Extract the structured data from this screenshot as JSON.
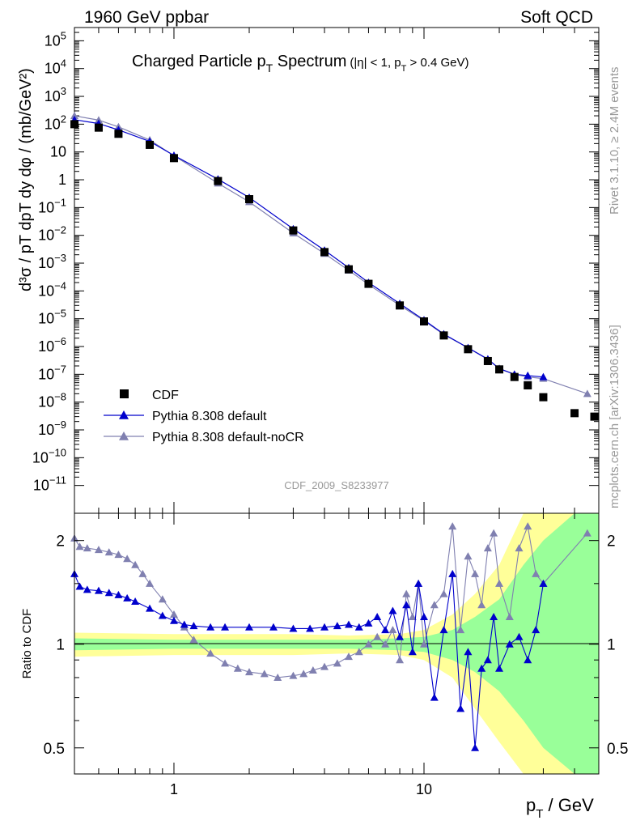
{
  "header": {
    "left": "1960 GeV ppbar",
    "right": "Soft QCD",
    "side_rivet": "Rivet 3.1.10, ≥ 2.4M events",
    "side_mcplots": "mcplots.cern.ch [arXiv:1306.3436]"
  },
  "chart_data": [
    {
      "type": "scatter",
      "title": "Charged Particle pT Spectrum (|η| < 1, pT > 0.4 GeV)",
      "title_parts": {
        "main": "Charged Particle p",
        "sub": "T",
        "rest": " Spectrum",
        "cut_a": "(|η| < 1, p",
        "cut_sub": "T",
        "cut_b": " > 0.4 GeV)"
      },
      "analysis_label": "CDF_2009_S8233977",
      "ylabel": "d³σ / pT dpT dy dφ / (mb/GeV²)",
      "xlabel": "pT / GeV",
      "x_scale": "log",
      "y_scale": "log",
      "xlim": [
        0.4,
        50
      ],
      "ylim": [
        1e-12,
        300000.0
      ],
      "legend_position": "bottom-left",
      "legend": [
        "CDF",
        "Pythia 8.308 default",
        "Pythia 8.308 default-noCR"
      ],
      "y_ticks": [
        {
          "v": 100000.0,
          "base": "10",
          "exp": "5"
        },
        {
          "v": 10000.0,
          "base": "10",
          "exp": "4"
        },
        {
          "v": 1000.0,
          "base": "10",
          "exp": "3"
        },
        {
          "v": 100.0,
          "base": "10",
          "exp": "2"
        },
        {
          "v": 10,
          "base": "10",
          "exp": ""
        },
        {
          "v": 1,
          "base": "1",
          "exp": ""
        },
        {
          "v": 0.1,
          "base": "10",
          "exp": "−1"
        },
        {
          "v": 0.01,
          "base": "10",
          "exp": "−2"
        },
        {
          "v": 0.001,
          "base": "10",
          "exp": "−3"
        },
        {
          "v": 0.0001,
          "base": "10",
          "exp": "−4"
        },
        {
          "v": 1e-05,
          "base": "10",
          "exp": "−5"
        },
        {
          "v": 1e-06,
          "base": "10",
          "exp": "−6"
        },
        {
          "v": 1e-07,
          "base": "10",
          "exp": "−7"
        },
        {
          "v": 1e-08,
          "base": "10",
          "exp": "−8"
        },
        {
          "v": 1e-09,
          "base": "10",
          "exp": "−9"
        },
        {
          "v": 1e-10,
          "base": "10",
          "exp": "−10"
        },
        {
          "v": 1e-11,
          "base": "10",
          "exp": "−11"
        }
      ],
      "series": [
        {
          "name": "CDF",
          "color": "#000000",
          "marker": "square",
          "x": [
            0.4,
            0.5,
            0.6,
            0.8,
            1.0,
            1.5,
            2.0,
            3.0,
            4.0,
            5.0,
            6.0,
            8.0,
            10.0,
            12.0,
            15.0,
            18.0,
            20.0,
            23.0,
            26.0,
            30.0,
            40.0,
            48.0
          ],
          "y": [
            100,
            75,
            45,
            18,
            6,
            0.9,
            0.2,
            0.015,
            0.0025,
            0.0006,
            0.00018,
            3e-05,
            8e-06,
            2.5e-06,
            8e-07,
            3e-07,
            1.5e-07,
            8e-08,
            4e-08,
            1.5e-08,
            4e-09,
            3e-09
          ]
        },
        {
          "name": "Pythia 8.308 default",
          "color": "#0000cc",
          "marker": "triangle",
          "x": [
            0.4,
            0.5,
            0.6,
            0.8,
            1.0,
            1.5,
            2.0,
            3.0,
            4.0,
            5.0,
            6.0,
            8.0,
            10.0,
            12.0,
            15.0,
            18.0,
            20.0,
            23.0,
            26.0,
            30.0
          ],
          "y": [
            145,
            105,
            62,
            24,
            7.5,
            1.05,
            0.23,
            0.017,
            0.0029,
            0.00068,
            0.0002,
            3.5e-05,
            9e-06,
            2.8e-06,
            9e-07,
            3.5e-07,
            1.6e-07,
            1e-07,
            9e-08,
            8e-08
          ]
        },
        {
          "name": "Pythia 8.308 default-noCR",
          "color": "#8080b0",
          "marker": "triangle",
          "x": [
            0.4,
            0.5,
            0.6,
            0.8,
            1.0,
            1.5,
            2.0,
            3.0,
            4.0,
            5.0,
            6.0,
            8.0,
            10.0,
            12.0,
            15.0,
            18.0,
            20.0,
            23.0,
            26.0,
            30.0,
            45.0
          ],
          "y": [
            200,
            140,
            80,
            27,
            7.3,
            0.75,
            0.16,
            0.012,
            0.0022,
            0.00055,
            0.00017,
            3e-05,
            8.5e-06,
            2.7e-06,
            9e-07,
            3.5e-07,
            1.6e-07,
            1e-07,
            8e-08,
            7e-08,
            2e-08
          ]
        }
      ]
    },
    {
      "type": "scatter",
      "ylabel": "Ratio to CDF",
      "x_scale": "log",
      "y_scale": "log",
      "xlim": [
        0.4,
        50
      ],
      "ylim": [
        0.42,
        2.4
      ],
      "x_ticks": [
        {
          "v": 1,
          "label": "1"
        },
        {
          "v": 10,
          "label": "10"
        }
      ],
      "y_ticks": [
        {
          "v": 2,
          "label": "2"
        },
        {
          "v": 1,
          "label": "1"
        },
        {
          "v": 0.5,
          "label": "0.5"
        }
      ],
      "bands": {
        "stat_color": "#99ff99",
        "total_color": "#ffff99",
        "x": [
          0.4,
          1.0,
          2.0,
          3.0,
          5.0,
          8.0,
          10.0,
          13.0,
          16.0,
          20.0,
          25.0,
          30.0,
          40.0,
          50.0
        ],
        "total_lo": [
          0.92,
          0.93,
          0.93,
          0.93,
          0.94,
          0.93,
          0.9,
          0.8,
          0.65,
          0.52,
          0.42,
          0.42,
          0.42,
          0.42
        ],
        "total_hi": [
          1.08,
          1.07,
          1.07,
          1.07,
          1.06,
          1.07,
          1.1,
          1.22,
          1.4,
          1.7,
          2.4,
          2.4,
          2.4,
          2.4
        ],
        "stat_lo": [
          0.96,
          0.97,
          0.97,
          0.97,
          0.97,
          0.96,
          0.95,
          0.9,
          0.83,
          0.73,
          0.6,
          0.5,
          0.42,
          0.42
        ],
        "stat_hi": [
          1.04,
          1.03,
          1.03,
          1.03,
          1.03,
          1.04,
          1.05,
          1.1,
          1.2,
          1.35,
          1.7,
          2.0,
          2.4,
          2.4
        ]
      },
      "series": [
        {
          "name": "Pythia 8.308 default",
          "color": "#0000cc",
          "x": [
            0.4,
            0.42,
            0.45,
            0.5,
            0.55,
            0.6,
            0.65,
            0.7,
            0.8,
            0.9,
            1.0,
            1.1,
            1.2,
            1.4,
            1.6,
            2.0,
            2.5,
            3.0,
            3.5,
            4.0,
            4.5,
            5.0,
            5.5,
            6.0,
            6.5,
            7.0,
            7.5,
            8.0,
            8.5,
            9.0,
            9.5,
            10.0,
            11.0,
            12.0,
            13.0,
            14.0,
            15.0,
            16.0,
            17.0,
            18.0,
            19.0,
            20.0,
            22.0,
            24.0,
            26.0,
            28.0,
            30.0
          ],
          "y": [
            1.6,
            1.47,
            1.44,
            1.43,
            1.41,
            1.39,
            1.36,
            1.33,
            1.27,
            1.21,
            1.17,
            1.14,
            1.13,
            1.12,
            1.12,
            1.12,
            1.12,
            1.11,
            1.11,
            1.12,
            1.13,
            1.14,
            1.12,
            1.15,
            1.2,
            1.1,
            1.25,
            1.05,
            1.3,
            0.95,
            1.5,
            1.2,
            0.7,
            1.1,
            1.6,
            0.65,
            0.95,
            0.5,
            0.85,
            0.9,
            1.2,
            0.85,
            1.0,
            1.05,
            0.9,
            1.1,
            1.5
          ]
        },
        {
          "name": "Pythia 8.308 default-noCR",
          "color": "#8080b0",
          "x": [
            0.4,
            0.42,
            0.45,
            0.5,
            0.55,
            0.6,
            0.65,
            0.7,
            0.75,
            0.8,
            0.9,
            1.0,
            1.1,
            1.2,
            1.4,
            1.6,
            1.8,
            2.0,
            2.3,
            2.6,
            3.0,
            3.3,
            3.6,
            4.0,
            4.5,
            5.0,
            5.5,
            6.0,
            6.5,
            7.0,
            7.5,
            8.0,
            8.5,
            9.0,
            9.5,
            10.0,
            11.0,
            12.0,
            13.0,
            14.0,
            15.0,
            16.0,
            17.0,
            18.0,
            19.0,
            20.0,
            22.0,
            24.0,
            26.0,
            28.0,
            30.0,
            45.0
          ],
          "y": [
            2.03,
            1.92,
            1.9,
            1.88,
            1.85,
            1.82,
            1.77,
            1.7,
            1.6,
            1.5,
            1.35,
            1.22,
            1.12,
            1.03,
            0.94,
            0.88,
            0.85,
            0.83,
            0.82,
            0.8,
            0.81,
            0.82,
            0.84,
            0.86,
            0.88,
            0.92,
            0.95,
            1.0,
            1.05,
            1.0,
            1.1,
            0.9,
            1.4,
            1.2,
            1.5,
            1.0,
            1.3,
            1.4,
            2.2,
            1.1,
            1.8,
            1.6,
            1.3,
            1.9,
            2.1,
            1.5,
            1.2,
            1.9,
            2.2,
            1.6,
            1.5,
            2.1
          ]
        }
      ]
    }
  ]
}
